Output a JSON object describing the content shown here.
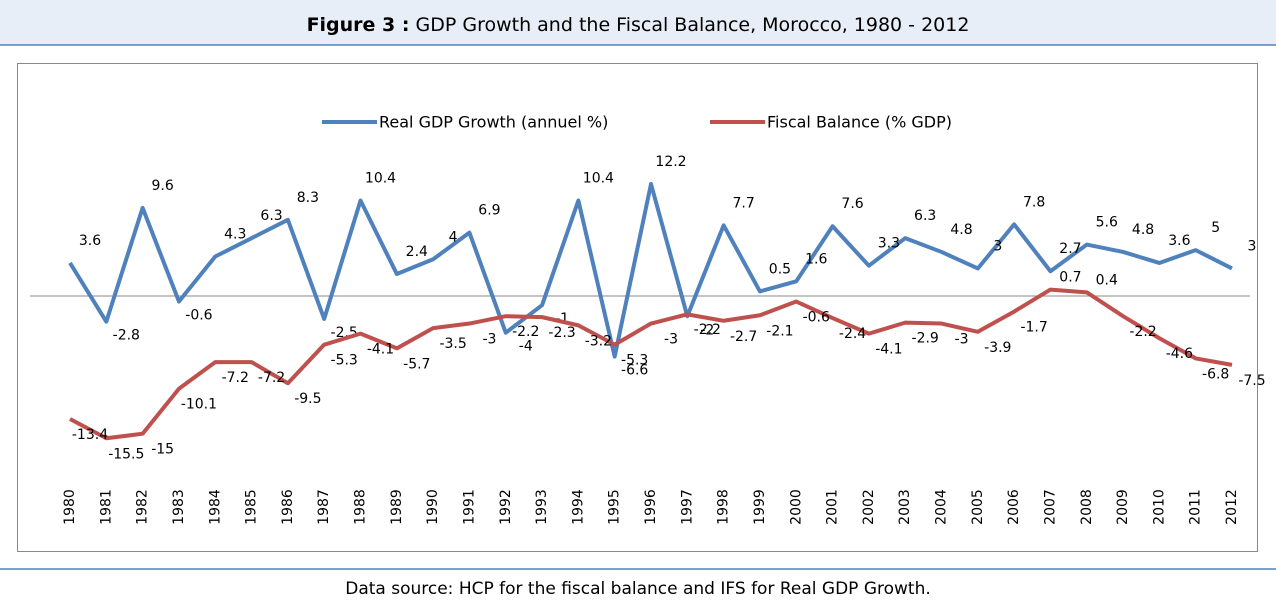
{
  "chart_data": {
    "type": "line",
    "title_prefix": "Figure 3 :",
    "title": "GDP Growth and the Fiscal Balance, Morocco, 1980 - 2012",
    "source": "Data source: HCP for the fiscal balance and IFS for Real GDP Growth.",
    "categories": [
      "1980",
      "1981",
      "1982",
      "1983",
      "1984",
      "1985",
      "1986",
      "1987",
      "1988",
      "1989",
      "1990",
      "1991",
      "1992",
      "1993",
      "1994",
      "1995",
      "1996",
      "1997",
      "1998",
      "1999",
      "2000",
      "2001",
      "2002",
      "2003",
      "2004",
      "2005",
      "2006",
      "2007",
      "2008",
      "2009",
      "2010",
      "2011",
      "2012"
    ],
    "ylim": [
      -20,
      15
    ],
    "legend": "top",
    "series": [
      {
        "name": "Real GDP Growth (annuel %)",
        "color": "#4f81bd",
        "values": [
          3.6,
          -2.8,
          9.6,
          -0.6,
          4.3,
          6.3,
          8.3,
          -2.5,
          10.4,
          2.4,
          4.0,
          6.9,
          -4.0,
          -1.0,
          10.4,
          -6.6,
          12.2,
          -2.2,
          7.7,
          0.5,
          1.6,
          7.6,
          3.3,
          6.3,
          4.8,
          3.0,
          7.8,
          2.7,
          5.6,
          4.8,
          3.6,
          5.0,
          3.0
        ]
      },
      {
        "name": "Fiscal Balance (% GDP)",
        "color": "#c0504d",
        "values": [
          -13.4,
          -15.5,
          -15.0,
          -10.1,
          -7.2,
          -7.2,
          -9.5,
          -5.3,
          -4.1,
          -5.7,
          -3.5,
          -3.0,
          -2.2,
          -2.3,
          -3.2,
          -5.3,
          -3.0,
          -2.0,
          -2.7,
          -2.1,
          -0.6,
          -2.4,
          -4.1,
          -2.9,
          -3.0,
          -3.9,
          -1.7,
          0.7,
          0.4,
          -2.2,
          -4.6,
          -6.8,
          -7.5
        ]
      }
    ]
  }
}
